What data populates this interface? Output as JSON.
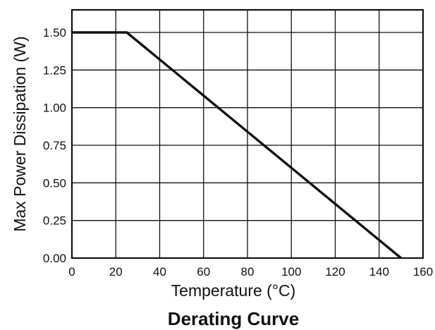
{
  "chart_data": {
    "type": "line",
    "title": "Derating Curve",
    "xlabel": "Temperature (°C)",
    "ylabel": "Max Power Dissipation (W)",
    "xlim": [
      0,
      160
    ],
    "ylim": [
      0,
      1.65
    ],
    "x_ticks": [
      0,
      20,
      40,
      60,
      80,
      100,
      120,
      140,
      160
    ],
    "y_ticks": [
      0,
      0.25,
      0.5,
      0.75,
      1.0,
      1.25,
      1.5
    ],
    "x_tick_labels": [
      "0",
      "20",
      "40",
      "60",
      "80",
      "100",
      "120",
      "140",
      "160"
    ],
    "y_tick_labels": [
      "0.00",
      "0.25",
      "0.50",
      "0.75",
      "1.00",
      "1.25",
      "1.50"
    ],
    "grid": true,
    "legend": "none",
    "series": [
      {
        "x": [
          0,
          25,
          150
        ],
        "y": [
          1.5,
          1.5,
          0.0
        ]
      }
    ],
    "colors": {
      "line": "#111111",
      "grid": "#111111",
      "frame": "#111111",
      "background": "#ffffff"
    }
  }
}
